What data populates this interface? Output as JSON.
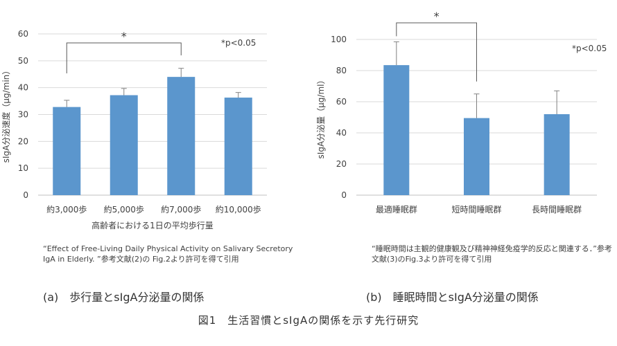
{
  "chart_data": [
    {
      "type": "bar",
      "categories": [
        "約3,000歩",
        "約5,000歩",
        "約7,000歩",
        "約10,000歩"
      ],
      "values": [
        32.8,
        37.2,
        44.0,
        36.3
      ],
      "errors": [
        2.5,
        2.5,
        3.2,
        1.9
      ],
      "xlabel": "高齢者における1日の平均歩行量",
      "ylabel": "sIgA分泌速度（μg/min）",
      "ylim": [
        0,
        60
      ],
      "yticks": [
        0,
        10,
        20,
        30,
        40,
        50,
        60
      ],
      "grid": true,
      "significance": {
        "from": 0,
        "to": 2,
        "label": "*"
      },
      "annotation": "*p<0.05",
      "color": "#5b96cd"
    },
    {
      "type": "bar",
      "categories": [
        "最適睡眠群",
        "短時間睡眠群",
        "長時間睡眠群"
      ],
      "values": [
        83.5,
        49.5,
        52.0
      ],
      "errors": [
        15.0,
        15.5,
        15.0
      ],
      "xlabel": "",
      "ylabel": "sIgA分泌量（μg/ml）",
      "ylim": [
        0,
        100
      ],
      "yticks": [
        0,
        20,
        40,
        60,
        80,
        100
      ],
      "grid": true,
      "significance": {
        "from": 0,
        "to": 1,
        "label": "*"
      },
      "annotation": "*p<0.05",
      "color": "#5b96cd"
    }
  ],
  "captions": {
    "a": "“Effect of Free-Living Daily Physical Activity on Salivary Secretory IgA in Elderly. ”参考文献(2)の Fig.2より許可を得て引用",
    "b": "“睡眠時間は主観的健康観及び精神神経免疫学的反応と関連する．”参考文献(3)のFig.3より許可を得て引用"
  },
  "panel_labels": {
    "a": "(a)　歩行量とsIgA分泌量の関係",
    "b": "(b)　睡眠時間とsIgA分泌量の関係"
  },
  "figure_title": "図1　生活習慣とsIgAの関係を示す先行研究"
}
